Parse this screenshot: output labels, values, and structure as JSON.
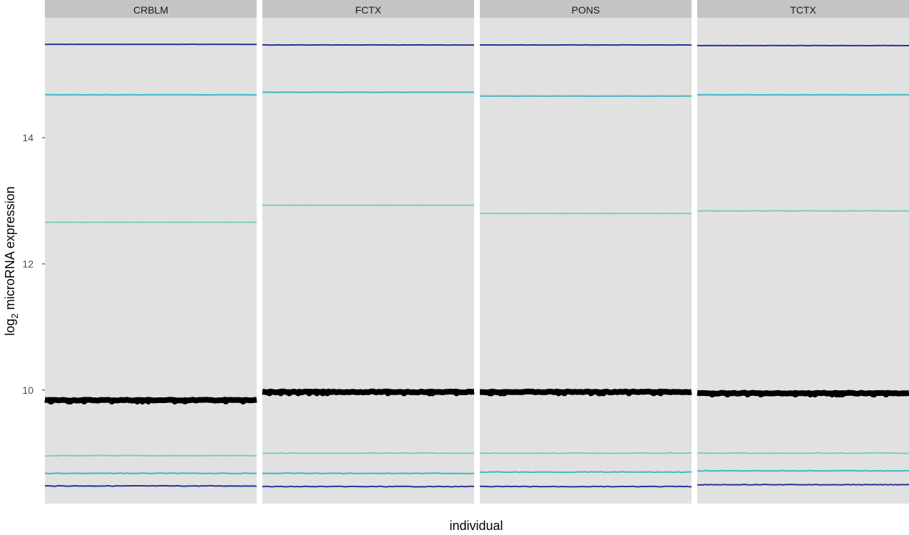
{
  "chart_data": {
    "type": "line",
    "xlabel": "individual",
    "ylabel_prefix": "log",
    "ylabel_subscript": "2",
    "ylabel_suffix": " microRNA expression",
    "ylim": [
      8.2,
      15.9
    ],
    "yticks": [
      "10",
      "12",
      "14"
    ],
    "grid": false,
    "legend": "none",
    "panels": [
      {
        "label": "CRBLM",
        "series": [
          {
            "color": "#253494",
            "value": 15.48
          },
          {
            "color": "#41b6c4",
            "value": 14.68
          },
          {
            "color": "#7fcdbb",
            "value": 12.66
          },
          {
            "color": "#000000",
            "value": 9.84,
            "thick": true
          },
          {
            "color": "#7fcdbb",
            "value": 8.96
          },
          {
            "color": "#41b6c4",
            "value": 8.68
          },
          {
            "color": "#253494",
            "value": 8.48
          }
        ]
      },
      {
        "label": "FCTX",
        "series": [
          {
            "color": "#253494",
            "value": 15.47
          },
          {
            "color": "#41b6c4",
            "value": 14.72
          },
          {
            "color": "#7fcdbb",
            "value": 12.93
          },
          {
            "color": "#000000",
            "value": 9.97,
            "thick": true
          },
          {
            "color": "#7fcdbb",
            "value": 9.0
          },
          {
            "color": "#41b6c4",
            "value": 8.68
          },
          {
            "color": "#253494",
            "value": 8.47
          }
        ]
      },
      {
        "label": "PONS",
        "series": [
          {
            "color": "#253494",
            "value": 15.47
          },
          {
            "color": "#41b6c4",
            "value": 14.66
          },
          {
            "color": "#7fcdbb",
            "value": 12.8
          },
          {
            "color": "#000000",
            "value": 9.97,
            "thick": true
          },
          {
            "color": "#7fcdbb",
            "value": 9.0
          },
          {
            "color": "#41b6c4",
            "value": 8.7
          },
          {
            "color": "#253494",
            "value": 8.47
          }
        ]
      },
      {
        "label": "TCTX",
        "series": [
          {
            "color": "#253494",
            "value": 15.46
          },
          {
            "color": "#41b6c4",
            "value": 14.68
          },
          {
            "color": "#7fcdbb",
            "value": 12.84
          },
          {
            "color": "#000000",
            "value": 9.95,
            "thick": true
          },
          {
            "color": "#7fcdbb",
            "value": 9.0
          },
          {
            "color": "#41b6c4",
            "value": 8.72
          },
          {
            "color": "#253494",
            "value": 8.5
          }
        ]
      }
    ]
  }
}
